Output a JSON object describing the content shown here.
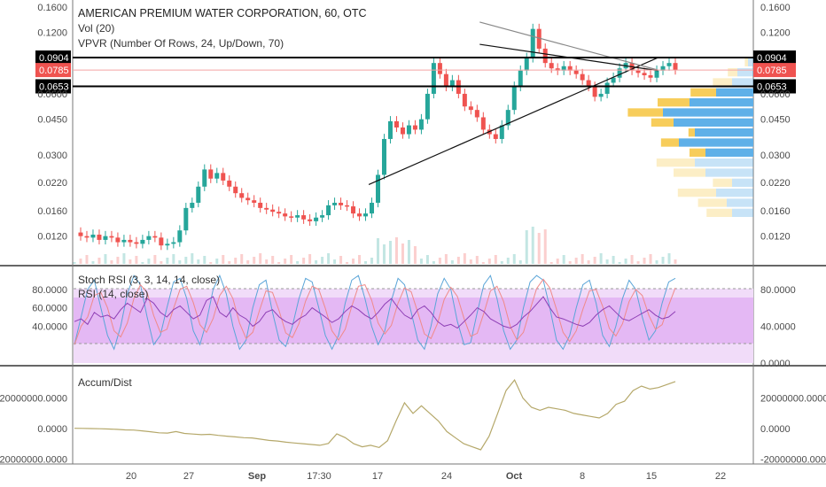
{
  "chart_data": [
    {
      "type": "line",
      "name": "price",
      "title": "AMERICAN PREMIUM WATER CORPORATION, 60, OTC",
      "scale": "log",
      "y_ticks": [
        "0.1600",
        "0.1200",
        "0.0904",
        "0.0785",
        "0.0653",
        "0.0600",
        "0.0450",
        "0.0300",
        "0.0220",
        "0.0160",
        "0.0120"
      ],
      "y_tick_values": [
        0.16,
        0.12,
        0.0904,
        0.0785,
        0.0653,
        0.06,
        0.045,
        0.03,
        0.022,
        0.016,
        0.012
      ],
      "right_ticks": [
        "0.1600",
        "0.1200",
        "0.0904",
        "0.0785",
        "0.0653",
        "0.0600",
        "0.0450",
        "0.0300",
        "0.0220",
        "0.0160",
        "0.0120"
      ],
      "price_tags": [
        {
          "label": "0.0904",
          "value": 0.0904,
          "color": "#000000"
        },
        {
          "label": "0.0785",
          "value": 0.0785,
          "color": "#ef5350"
        },
        {
          "label": "0.0653",
          "value": 0.0653,
          "color": "#000000"
        }
      ],
      "legend": [
        "Vol (20)",
        "VPVR (Number Of Rows, 24, Up/Down, 70)"
      ],
      "close_series": [
        0.0125,
        0.012,
        0.0118,
        0.0122,
        0.0115,
        0.012,
        0.0118,
        0.0112,
        0.0115,
        0.0112,
        0.011,
        0.0115,
        0.012,
        0.0118,
        0.0108,
        0.011,
        0.0112,
        0.0128,
        0.0165,
        0.0175,
        0.021,
        0.0255,
        0.023,
        0.0245,
        0.0225,
        0.021,
        0.0195,
        0.0185,
        0.018,
        0.0175,
        0.0165,
        0.0162,
        0.0158,
        0.0155,
        0.015,
        0.0148,
        0.0152,
        0.0145,
        0.0142,
        0.0148,
        0.0152,
        0.017,
        0.0175,
        0.017,
        0.0168,
        0.0155,
        0.015,
        0.0155,
        0.0175,
        0.024,
        0.036,
        0.044,
        0.041,
        0.038,
        0.042,
        0.04,
        0.045,
        0.06,
        0.085,
        0.075,
        0.065,
        0.07,
        0.06,
        0.052,
        0.05,
        0.046,
        0.04,
        0.038,
        0.036,
        0.042,
        0.05,
        0.065,
        0.078,
        0.09,
        0.125,
        0.1,
        0.085,
        0.08,
        0.078,
        0.082,
        0.078,
        0.075,
        0.07,
        0.065,
        0.058,
        0.06,
        0.068,
        0.072,
        0.08,
        0.085,
        0.078,
        0.076,
        0.074,
        0.072,
        0.078,
        0.082,
        0.085,
        0.0785
      ],
      "vpvr_up": [
        0,
        0,
        0,
        0.4,
        0.45,
        0.6,
        0.3,
        0.5,
        0.6,
        0.25,
        0.28,
        0.1,
        0.35,
        0.55,
        0.5,
        0.4,
        0.3,
        0.15,
        0.05,
        0,
        0,
        0,
        0,
        0
      ],
      "vpvr_down": [
        0,
        0,
        0,
        0.2,
        0.25,
        0.35,
        0.2,
        0.45,
        0.55,
        0.45,
        0.7,
        0.55,
        0.75,
        0.85,
        0.6,
        0.35,
        0.2,
        0.15,
        0.05,
        0,
        0,
        0,
        0,
        0
      ],
      "trendlines": [
        {
          "x1": 0.435,
          "y1": 0.0215,
          "x2": 0.86,
          "y2": 0.0904
        },
        {
          "x1": 0.598,
          "y1": 0.135,
          "x2": 0.86,
          "y2": 0.0785
        },
        {
          "x1": 0.598,
          "y1": 0.105,
          "x2": 0.86,
          "y2": 0.078
        }
      ]
    },
    {
      "type": "line",
      "name": "oscillators",
      "series_labels": [
        "Stoch RSI (3, 3, 14, 14, close)",
        "RSI (14, close)"
      ],
      "left_ticks": [
        "80.0000",
        "60.0000",
        "40.0000"
      ],
      "left_tick_values": [
        80,
        60,
        40
      ],
      "right_ticks": [
        "80.0000",
        "40.0000",
        "0.0000"
      ],
      "right_tick_values": [
        80,
        40,
        0
      ],
      "rsi": [
        45,
        48,
        42,
        55,
        50,
        52,
        48,
        58,
        65,
        60,
        55,
        70,
        65,
        55,
        50,
        58,
        62,
        55,
        48,
        52,
        68,
        72,
        55,
        50,
        60,
        52,
        48,
        40,
        45,
        55,
        58,
        50,
        45,
        42,
        48,
        52,
        60,
        55,
        50,
        44,
        48,
        56,
        62,
        58,
        52,
        48,
        55,
        64,
        70,
        60,
        52,
        48,
        58,
        62,
        55,
        45,
        40,
        42,
        38,
        45,
        52,
        60,
        56,
        48,
        44,
        40,
        38,
        42,
        50,
        56,
        64,
        72,
        60,
        50,
        48,
        45,
        42,
        40,
        44,
        52,
        58,
        62,
        55,
        48,
        46,
        50,
        54,
        58,
        52,
        48,
        50,
        56
      ],
      "stoch": [
        20,
        50,
        80,
        90,
        60,
        30,
        15,
        40,
        75,
        95,
        85,
        50,
        20,
        30,
        60,
        88,
        92,
        70,
        35,
        20,
        45,
        80,
        95,
        75,
        40,
        15,
        25,
        60,
        85,
        90,
        55,
        25,
        18,
        40,
        70,
        92,
        88,
        60,
        30,
        15,
        30,
        65,
        90,
        95,
        70,
        40,
        20,
        35,
        68,
        92,
        85,
        55,
        25,
        15,
        40,
        75,
        92,
        80,
        45,
        20,
        22,
        55,
        85,
        95,
        70,
        35,
        15,
        25,
        60,
        88,
        95,
        90,
        60,
        25,
        15,
        30,
        60,
        85,
        90,
        65,
        30,
        18,
        40,
        70,
        90,
        80,
        50,
        25,
        35,
        65,
        88,
        92
      ]
    },
    {
      "type": "line",
      "name": "accum-dist",
      "title": "Accum/Dist",
      "left_ticks": [
        "20000000.0000",
        "0.0000",
        "-20000000.0000"
      ],
      "left_tick_values": [
        20000000,
        0,
        -20000000
      ],
      "right_ticks": [
        "20000000.0000",
        "0.0000",
        "-20000000.0000"
      ],
      "right_tick_values": [
        20000000,
        0,
        -20000000
      ],
      "color": "#b5a86a",
      "values": [
        200000,
        100000,
        0,
        -100000,
        -300000,
        -500000,
        -900000,
        -1000000,
        -1500000,
        -2100000,
        -2800000,
        -3000000,
        -2000000,
        -3200000,
        -3600000,
        -4000000,
        -3800000,
        -4500000,
        -5000000,
        -5500000,
        -6000000,
        -6200000,
        -7000000,
        -7800000,
        -8200000,
        -9000000,
        -9500000,
        -10000000,
        -10500000,
        -11000000,
        -9800000,
        -3500000,
        -6000000,
        -10000000,
        -12000000,
        -11000000,
        -12500000,
        -8000000,
        5000000,
        17000000,
        10000000,
        15000000,
        10000000,
        5000000,
        -2000000,
        -6000000,
        -10000000,
        -12000000,
        -14000000,
        -5000000,
        10000000,
        25000000,
        32000000,
        20000000,
        14000000,
        12000000,
        14000000,
        13000000,
        12000000,
        10000000,
        9000000,
        8000000,
        7000000,
        10000000,
        16000000,
        18000000,
        25000000,
        28000000,
        26000000,
        27000000,
        29000000,
        31000000
      ]
    }
  ],
  "x_axis": {
    "ticks": [
      "20",
      "27",
      "Sep",
      "17:30",
      "10",
      "17",
      "24",
      "Oct",
      "8",
      "15",
      "22"
    ],
    "tick_bold": [
      false,
      false,
      true,
      false,
      false,
      false,
      false,
      true,
      false,
      false,
      false
    ]
  },
  "colors": {
    "up": "#26a69a",
    "down": "#ef5350",
    "vpvr_up": "#5fb0e8",
    "vpvr_down": "#f7cd5b",
    "stoch": "#5aa5d8",
    "rsi": "#8e3fb5",
    "rsi_band": "#cd8be8",
    "ad": "#b5a86a"
  }
}
